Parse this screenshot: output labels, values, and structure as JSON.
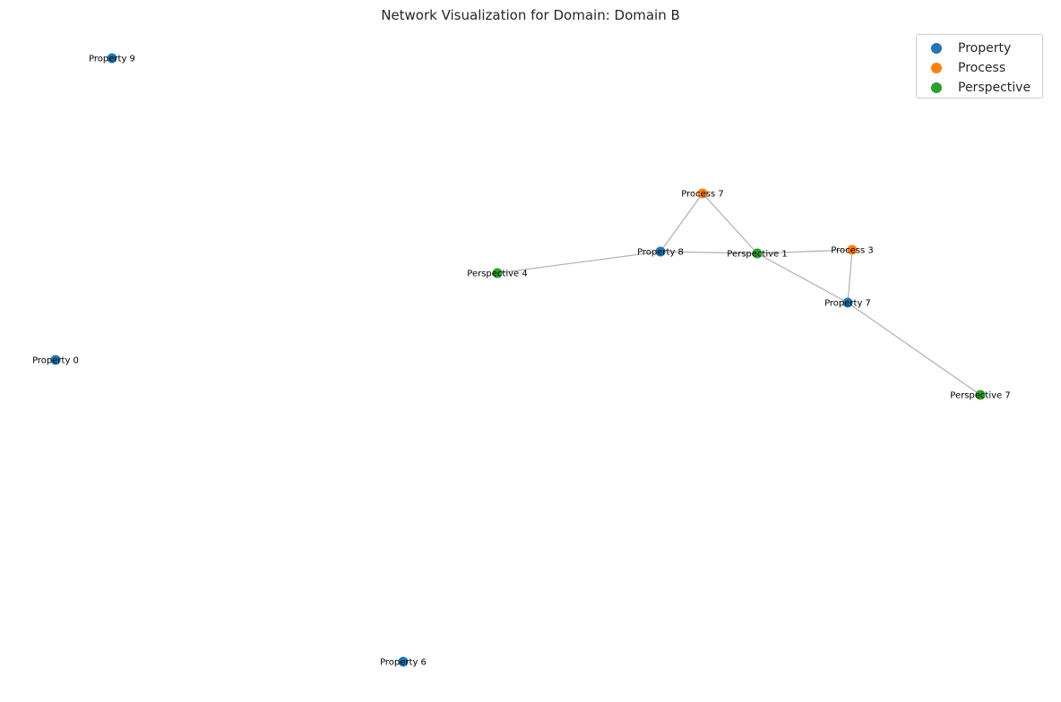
{
  "title": "Network Visualization for Domain: Domain B",
  "colors": {
    "Property": "#1f77b4",
    "Process": "#ff7f0e",
    "Perspective": "#2ca02c",
    "edge": "#b0b0b0"
  },
  "legend": [
    {
      "label": "Property",
      "type": "Property"
    },
    {
      "label": "Process",
      "type": "Process"
    },
    {
      "label": "Perspective",
      "type": "Perspective"
    }
  ],
  "nodes": [
    {
      "id": "Property 9",
      "type": "Property"
    },
    {
      "id": "Property 0",
      "type": "Property"
    },
    {
      "id": "Property 6",
      "type": "Property"
    },
    {
      "id": "Process 7",
      "type": "Process"
    },
    {
      "id": "Property 8",
      "type": "Property"
    },
    {
      "id": "Perspective 4",
      "type": "Perspective"
    },
    {
      "id": "Perspective 1",
      "type": "Perspective"
    },
    {
      "id": "Process 3",
      "type": "Process"
    },
    {
      "id": "Property 7",
      "type": "Property"
    },
    {
      "id": "Perspective 7",
      "type": "Perspective"
    }
  ],
  "edges": [
    [
      "Process 7",
      "Property 8"
    ],
    [
      "Process 7",
      "Perspective 1"
    ],
    [
      "Property 8",
      "Perspective 4"
    ],
    [
      "Property 8",
      "Perspective 1"
    ],
    [
      "Perspective 1",
      "Process 3"
    ],
    [
      "Perspective 1",
      "Property 7"
    ],
    [
      "Process 3",
      "Property 7"
    ],
    [
      "Property 7",
      "Perspective 7"
    ]
  ]
}
